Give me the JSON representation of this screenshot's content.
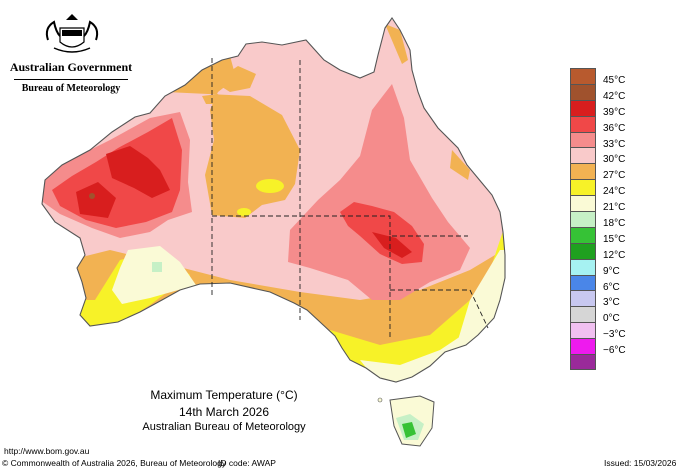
{
  "header": {
    "government": "Australian Government",
    "bureau": "Bureau of Meteorology"
  },
  "legend": {
    "items": [
      {
        "label": "45°C",
        "color": "#b85a2e"
      },
      {
        "label": "42°C",
        "color": "#a0522d"
      },
      {
        "label": "39°C",
        "color": "#d81e1e"
      },
      {
        "label": "36°C",
        "color": "#f04848"
      },
      {
        "label": "33°C",
        "color": "#f58c8c"
      },
      {
        "label": "30°C",
        "color": "#f9caca"
      },
      {
        "label": "27°C",
        "color": "#f2b252"
      },
      {
        "label": "24°C",
        "color": "#f7f228"
      },
      {
        "label": "21°C",
        "color": "#fafad6"
      },
      {
        "label": "18°C",
        "color": "#c6f0c6"
      },
      {
        "label": "15°C",
        "color": "#36c236"
      },
      {
        "label": "12°C",
        "color": "#1fa01f"
      },
      {
        "label": "9°C",
        "color": "#a6f2f2"
      },
      {
        "label": "6°C",
        "color": "#4a86e8"
      },
      {
        "label": "3°C",
        "color": "#c8c8f0"
      },
      {
        "label": "0°C",
        "color": "#d6d6d6"
      },
      {
        "label": "−3°C",
        "color": "#f0c0f0"
      },
      {
        "label": "−6°C",
        "color": "#ee1aee"
      },
      {
        "label": "",
        "color": "#9a2a9a"
      }
    ]
  },
  "caption": {
    "title": "Maximum Temperature (°C)",
    "date": "14th March 2026",
    "source": "Australian Bureau of Meteorology"
  },
  "footer": {
    "url": "http://www.bom.gov.au",
    "copyright": "© Commonwealth of Australia 2026, Bureau of Meteorology",
    "id_code": "ID code: AWAP",
    "issued": "Issued: 15/03/2026"
  },
  "colors": {
    "coast": "#555555",
    "state_border": "#222222"
  }
}
